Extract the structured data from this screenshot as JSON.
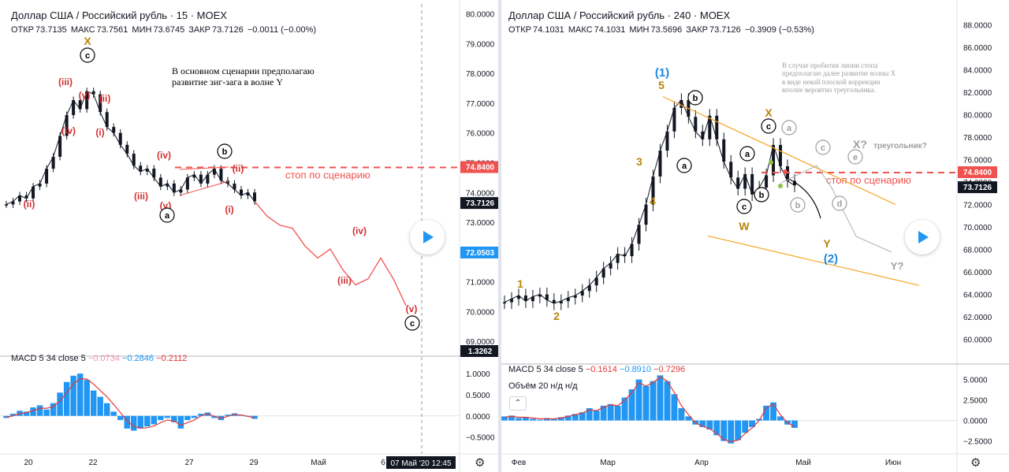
{
  "left": {
    "title": "Доллар США / Российский рубль · 15 · MOEX",
    "ohlc": {
      "o_label": "ОТКР",
      "o": "73.7135",
      "h_label": "МАКС",
      "h": "73.7561",
      "l_label": "МИН",
      "l": "73.6745",
      "c_label": "ЗАКР",
      "c": "73.7126",
      "chg": "−0.0011 (−0.00%)"
    },
    "note": "В основном сценарии предполагаю\nразвитие зиг-зага в волне Y",
    "stop_label": "стоп по сценарию",
    "macd_legend": {
      "name": "MACD 5 34 close 5",
      "v1": "−0.0734",
      "v2": "−0.2846",
      "v3": "−0.2112"
    },
    "wave_labels": [
      "X",
      "c",
      "(iii)",
      "(v)",
      "(ii)",
      "(i)",
      "(iv)",
      "(iv)",
      "(iii)",
      "(v)",
      "a",
      "(ii)",
      "b",
      "(i)",
      "(ii)",
      "(iv)",
      "(iii)",
      "(v)",
      "c"
    ],
    "price_badges": {
      "stop": "74.8400",
      "last": "73.7126",
      "blue": "72.0503",
      "macd": "1.3262"
    },
    "crosshair_time": "07 Май '20",
    "crosshair_clock": "12:45"
  },
  "right": {
    "title": "Доллар США / Российский рубль · 240 · MOEX",
    "ohlc": {
      "o_label": "ОТКР",
      "o": "74.1031",
      "h_label": "МАКС",
      "h": "74.1031",
      "l_label": "МИН",
      "l": "73.5696",
      "c_label": "ЗАКР",
      "c": "73.7126",
      "chg": "−0.3909 (−0.53%)"
    },
    "note": "В случае пробития линии стопа\nпредполагаю далее развитие волны X\nв виде некой плоской коррекции\nвполне вероятно треугольника.",
    "stop_label": "стоп по сценарию",
    "macd_legend": {
      "name": "MACD 5 34 close 5",
      "v1": "−0.1614",
      "v2": "−0.8910",
      "v3": "−0.7296"
    },
    "vol_legend": "Объём 20  н/д н/д",
    "wave_labels": [
      "(1)",
      "5",
      "b",
      "a",
      "3",
      "4",
      "1",
      "2",
      "X",
      "c",
      "a",
      "a",
      "b",
      "c",
      "W",
      "b",
      "c",
      "X?",
      "треугольник?",
      "e",
      "d",
      "Y",
      "(2)",
      "Y?"
    ],
    "price_badges": {
      "stop": "74.8400",
      "last": "73.7126"
    }
  },
  "chart_data": [
    {
      "type": "line",
      "title": "Доллар США / Российский рубль · 15 · MOEX",
      "interval": "15",
      "x_ticks": [
        "20",
        "22",
        "27",
        "29",
        "Май",
        "6"
      ],
      "y_ticks": [
        "80.0000",
        "79.0000",
        "78.0000",
        "77.0000",
        "76.0000",
        "75.0000",
        "74.0000",
        "73.0000",
        "71.0000",
        "70.0000",
        "69.0000"
      ],
      "ylim": [
        68.9,
        80.2
      ],
      "series": [
        {
          "name": "USDRUB",
          "values": [
            73.6,
            73.7,
            73.9,
            73.8,
            74.2,
            74.3,
            74.8,
            75.2,
            75.9,
            76.6,
            77.1,
            76.8,
            77.4,
            77.3,
            76.7,
            76.2,
            76.0,
            75.6,
            75.3,
            74.9,
            74.7,
            74.8,
            74.5,
            74.2,
            74.3,
            74.0,
            74.1,
            74.5,
            74.6,
            74.3,
            74.6,
            74.8,
            74.4,
            74.3,
            74.1,
            73.9,
            74.0,
            73.7
          ]
        }
      ],
      "projection": [
        73.7,
        73.2,
        72.9,
        72.8,
        72.2,
        71.8,
        72.1,
        71.4,
        70.9,
        71.1,
        71.8,
        71.1,
        70.2
      ],
      "stop_level": 74.84,
      "last_price": 73.7126,
      "marker_price": 72.0503,
      "macd": {
        "name": "MACD 5 34 close 5",
        "y_ticks": [
          "1.0000",
          "0.5000",
          "0.0000",
          "−0.5000"
        ],
        "ylim": [
          -0.75,
          1.3
        ],
        "histogram": [
          -0.05,
          0.05,
          0.12,
          0.1,
          0.2,
          0.25,
          0.15,
          0.3,
          0.55,
          0.8,
          0.95,
          1.0,
          0.85,
          0.6,
          0.45,
          0.3,
          0.1,
          -0.1,
          -0.3,
          -0.35,
          -0.3,
          -0.25,
          -0.2,
          -0.1,
          -0.05,
          -0.15,
          -0.3,
          -0.1,
          -0.05,
          0.05,
          0.08,
          -0.05,
          -0.1,
          0.03,
          0.06,
          0.02,
          -0.02,
          -0.07
        ],
        "signal": [
          -0.03,
          0.0,
          0.05,
          0.08,
          0.12,
          0.18,
          0.18,
          0.22,
          0.35,
          0.55,
          0.75,
          0.88,
          0.87,
          0.75,
          0.6,
          0.45,
          0.27,
          0.08,
          -0.12,
          -0.25,
          -0.29,
          -0.28,
          -0.24,
          -0.16,
          -0.1,
          -0.12,
          -0.22,
          -0.16,
          -0.1,
          0.0,
          0.05,
          -0.01,
          -0.06,
          -0.01,
          0.03,
          0.02,
          -0.01,
          -0.05
        ]
      }
    },
    {
      "type": "line",
      "title": "Доллар США / Российский рубль · 240 · MOEX",
      "interval": "240",
      "x_ticks": [
        "Фев",
        "Мар",
        "Апр",
        "Май",
        "Июн"
      ],
      "y_ticks": [
        "88.0000",
        "86.0000",
        "84.0000",
        "82.0000",
        "80.0000",
        "78.0000",
        "76.0000",
        "74.0000",
        "72.0000",
        "70.0000",
        "68.0000",
        "66.0000",
        "64.0000",
        "62.0000",
        "60.0000"
      ],
      "ylim": [
        58.5,
        89.5
      ],
      "series": [
        {
          "name": "USDRUB",
          "values": [
            63.3,
            63.6,
            63.9,
            63.4,
            63.8,
            64.0,
            63.5,
            63.2,
            63.4,
            63.7,
            63.9,
            64.3,
            64.8,
            65.5,
            66.3,
            66.8,
            67.6,
            67.4,
            68.5,
            70.2,
            72.0,
            74.5,
            76.8,
            78.5,
            80.6,
            81.3,
            79.8,
            78.5,
            77.8,
            79.9,
            77.8,
            75.8,
            74.4,
            73.4,
            74.7,
            72.9,
            73.5,
            74.6,
            77.3,
            75.4,
            74.1,
            73.7
          ]
        }
      ],
      "stop_level": 74.84,
      "last_price": 73.7126,
      "channel_upper": [
        [
          36,
          81.6
        ],
        [
          90,
          72.0
        ]
      ],
      "channel_lower": [
        [
          36,
          69.2
        ],
        [
          90,
          64.8
        ]
      ],
      "macd": {
        "name": "MACD 5 34 close 5",
        "y_ticks": [
          "5.0000",
          "2.5000",
          "0.0000",
          "−2.5000"
        ],
        "ylim": [
          -3.3,
          6.3
        ],
        "histogram": [
          0.5,
          0.6,
          0.3,
          0.4,
          0.2,
          0.1,
          0.3,
          0.2,
          0.4,
          0.6,
          0.8,
          1.0,
          1.5,
          1.2,
          1.8,
          2.0,
          1.8,
          2.8,
          3.8,
          5.0,
          4.2,
          4.8,
          5.5,
          4.8,
          3.2,
          1.5,
          0.5,
          -0.5,
          -0.8,
          -1.1,
          -1.8,
          -2.5,
          -2.8,
          -2.4,
          -1.5,
          -0.8,
          0.2,
          1.8,
          2.2,
          0.5,
          -0.5,
          -0.9
        ],
        "signal": [
          0.4,
          0.5,
          0.4,
          0.4,
          0.3,
          0.2,
          0.2,
          0.2,
          0.3,
          0.5,
          0.7,
          0.9,
          1.3,
          1.2,
          1.6,
          1.9,
          1.8,
          2.5,
          3.4,
          4.6,
          4.2,
          4.6,
          5.3,
          4.8,
          3.4,
          1.8,
          0.7,
          -0.3,
          -0.7,
          -1.0,
          -1.6,
          -2.3,
          -2.6,
          -2.4,
          -1.6,
          -0.9,
          0.0,
          1.5,
          2.0,
          0.7,
          -0.3,
          -0.73
        ]
      }
    }
  ],
  "colors": {
    "stop": "#ef5350",
    "macd_hist": "#2196f3",
    "macd_signal": "#e53935",
    "candle": "#131722",
    "badge_dark": "#131722",
    "badge_blue": "#2196f3",
    "wave_red": "#d32f2f",
    "wave_orange": "#b8860b",
    "wave_blue": "#1e88e5",
    "channel": "#f5a623",
    "projection": "#ef5350",
    "grey_projection": "#b0b0b0"
  },
  "icons": [
    "play-icon",
    "gear-icon",
    "collapse-chevron-icon"
  ]
}
